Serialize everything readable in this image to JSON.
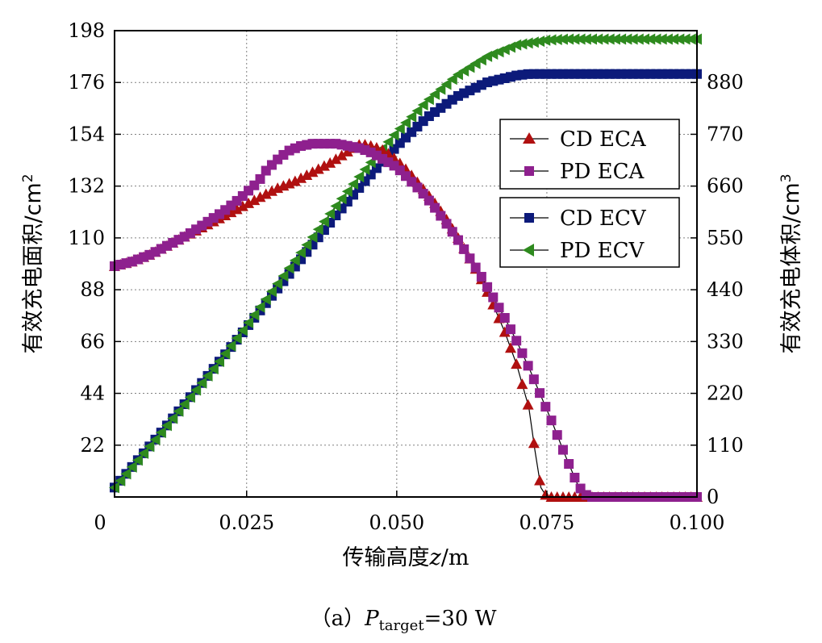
{
  "chart_data": {
    "type": "line",
    "xlabel_main": "传输高度",
    "xlabel_var": "z",
    "xlabel_unit": "/m",
    "ylabel_left": "有效充电面积/cm",
    "ylabel_left_sup": "2",
    "ylabel_right": "有效充电体积/cm",
    "ylabel_right_sup": "3",
    "caption_prefix": "（a）",
    "caption_var": "P",
    "caption_sub": "target",
    "caption_value": "=30 W",
    "xlim": [
      0,
      0.1
    ],
    "ylim_left": [
      0,
      198
    ],
    "ylim_right": [
      0,
      990
    ],
    "x_ticks": [
      "0",
      "0.025",
      "0.050",
      "0.075",
      "0.100"
    ],
    "x_tick_values": [
      0,
      0.025,
      0.05,
      0.075,
      0.1
    ],
    "y_left_ticks": [
      "22",
      "44",
      "66",
      "88",
      "110",
      "132",
      "154",
      "176",
      "198"
    ],
    "y_left_tick_values": [
      22,
      44,
      66,
      88,
      110,
      132,
      154,
      176,
      198
    ],
    "y_right_ticks": [
      "0",
      "110",
      "220",
      "330",
      "440",
      "550",
      "660",
      "770",
      "880"
    ],
    "y_right_tick_values": [
      0,
      110,
      220,
      330,
      440,
      550,
      660,
      770,
      880
    ],
    "grid": true,
    "legend_position": "right",
    "series": [
      {
        "name": "CD ECA",
        "axis": "left",
        "marker": "triangle-up",
        "color": "#b01010",
        "x": [
          0.003,
          0.006,
          0.009,
          0.012,
          0.015,
          0.018,
          0.021,
          0.024,
          0.027,
          0.03,
          0.033,
          0.036,
          0.039,
          0.042,
          0.044,
          0.046,
          0.048,
          0.05,
          0.052,
          0.054,
          0.056,
          0.058,
          0.06,
          0.062,
          0.064,
          0.066,
          0.068,
          0.07,
          0.072,
          0.073,
          0.074,
          0.075,
          0.08,
          0.085,
          0.09,
          0.095,
          0.1
        ],
        "y": [
          98,
          100,
          103,
          107,
          111,
          115,
          119,
          123,
          127,
          131,
          134,
          138,
          142,
          147,
          150,
          149,
          147,
          143,
          138,
          132,
          126,
          119,
          111,
          102,
          93,
          82,
          70,
          56,
          38,
          20,
          4,
          0,
          0,
          0,
          0,
          0,
          0
        ]
      },
      {
        "name": "PD ECA",
        "axis": "left",
        "marker": "square",
        "color": "#8e208e",
        "x": [
          0.003,
          0.006,
          0.009,
          0.012,
          0.015,
          0.018,
          0.021,
          0.024,
          0.027,
          0.028,
          0.03,
          0.032,
          0.034,
          0.036,
          0.038,
          0.04,
          0.042,
          0.044,
          0.046,
          0.048,
          0.05,
          0.052,
          0.054,
          0.056,
          0.058,
          0.06,
          0.062,
          0.064,
          0.066,
          0.068,
          0.07,
          0.072,
          0.074,
          0.076,
          0.078,
          0.08,
          0.081,
          0.082,
          0.085,
          0.09,
          0.095,
          0.1
        ],
        "y": [
          98,
          100,
          103,
          107,
          111,
          116,
          121,
          127,
          134,
          138,
          143,
          147,
          149,
          150,
          150,
          150,
          149,
          148,
          146,
          143,
          140,
          135,
          130,
          124,
          117,
          110,
          102,
          94,
          85,
          76,
          66,
          55,
          43,
          31,
          18,
          6,
          2,
          0,
          0,
          0,
          0,
          0
        ]
      },
      {
        "name": "CD ECV",
        "axis": "right",
        "marker": "square",
        "color": "#0c1a7a",
        "x": [
          0.003,
          0.01,
          0.02,
          0.03,
          0.04,
          0.045,
          0.05,
          0.055,
          0.06,
          0.065,
          0.07,
          0.072,
          0.075,
          0.08,
          0.09,
          0.1
        ],
        "y": [
          20,
          125,
          280,
          440,
          600,
          675,
          745,
          805,
          850,
          880,
          895,
          898,
          898,
          898,
          898,
          898
        ]
      },
      {
        "name": "PD ECV",
        "axis": "right",
        "marker": "triangle-left",
        "color": "#2e8a1e",
        "x": [
          0.003,
          0.01,
          0.02,
          0.03,
          0.04,
          0.045,
          0.05,
          0.055,
          0.06,
          0.065,
          0.07,
          0.075,
          0.078,
          0.08,
          0.09,
          0.1
        ],
        "y": [
          20,
          125,
          280,
          450,
          620,
          700,
          775,
          840,
          895,
          935,
          960,
          970,
          972,
          972,
          972,
          972
        ]
      }
    ]
  }
}
